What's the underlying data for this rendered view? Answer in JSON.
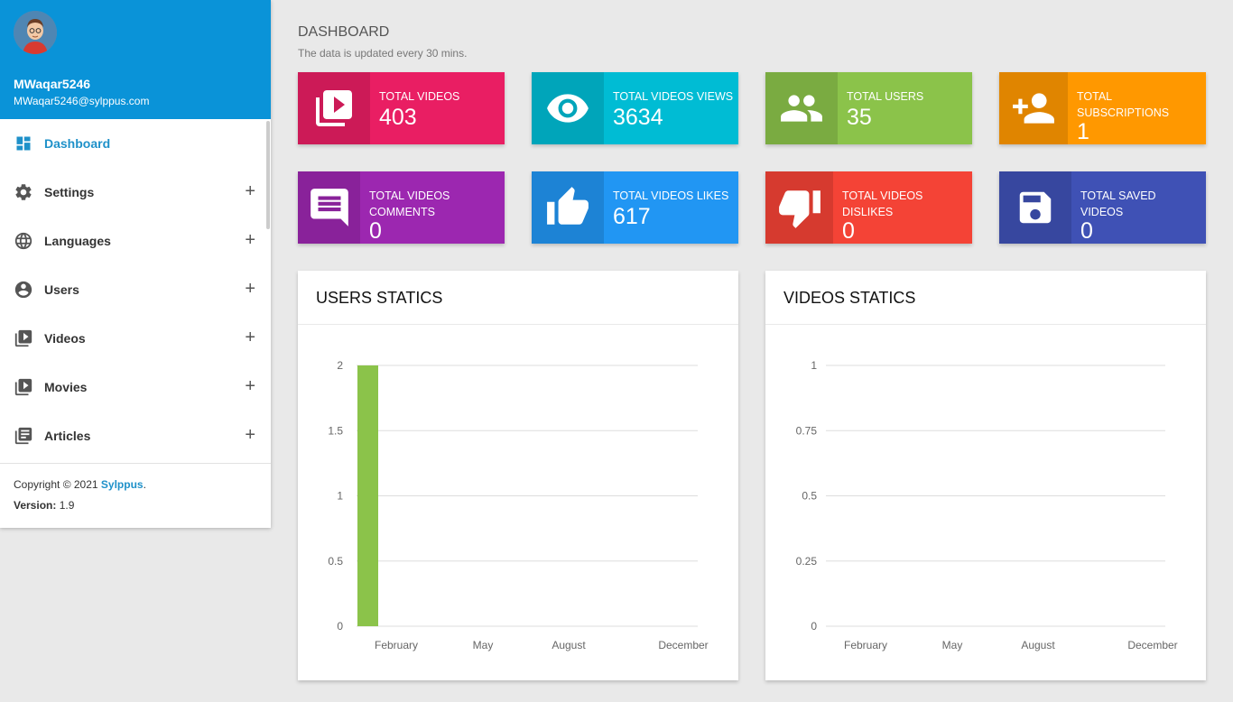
{
  "user": {
    "name": "MWaqar5246",
    "email": "MWaqar5246@sylppus.com"
  },
  "menu": {
    "items": [
      {
        "label": "Dashboard",
        "icon": "dashboard-icon",
        "active": true,
        "expand": ""
      },
      {
        "label": "Settings",
        "icon": "gear-icon",
        "expand": "+"
      },
      {
        "label": "Languages",
        "icon": "globe-icon",
        "expand": "+"
      },
      {
        "label": "Users",
        "icon": "account-circle-icon",
        "expand": "+"
      },
      {
        "label": "Videos",
        "icon": "video-library-icon",
        "expand": "+"
      },
      {
        "label": "Movies",
        "icon": "video-library-icon",
        "expand": "+"
      },
      {
        "label": "Articles",
        "icon": "articles-icon",
        "expand": "+"
      }
    ]
  },
  "legal": {
    "copyright_prefix": "Copyright © 2021 ",
    "copyright_link": "Sylppus",
    "copyright_suffix": ".",
    "version_label": "Version:",
    "version_value": "1.9"
  },
  "page": {
    "title": "DASHBOARD",
    "subtitle": "The data is updated every 30 mins."
  },
  "stats": [
    {
      "label": "TOTAL VIDEOS",
      "value": "403",
      "icon": "video-library-icon",
      "color": "#e91e63"
    },
    {
      "label": "TOTAL VIDEOS VIEWS",
      "value": "3634",
      "icon": "eye-icon",
      "color": "#00bcd4"
    },
    {
      "label": "TOTAL USERS",
      "value": "35",
      "icon": "people-icon",
      "color": "#8bc34a"
    },
    {
      "label": "TOTAL SUBSCRIPTIONS",
      "value": "1",
      "icon": "person-add-icon",
      "color": "#ff9800"
    },
    {
      "label": "TOTAL VIDEOS COMMENTS",
      "value": "0",
      "icon": "comment-icon",
      "color": "#9c27b0"
    },
    {
      "label": "TOTAL VIDEOS LIKES",
      "value": "617",
      "icon": "thumb-up-icon",
      "color": "#2196f3"
    },
    {
      "label": "TOTAL VIDEOS DISLIKES",
      "value": "0",
      "icon": "thumb-down-icon",
      "color": "#f44336"
    },
    {
      "label": "TOTAL SAVED VIDEOS",
      "value": "0",
      "icon": "save-icon",
      "color": "#3f51b5"
    }
  ],
  "chart_data": [
    {
      "type": "bar",
      "title": "USERS STATICS",
      "categories": [
        "February",
        "May",
        "August",
        "December"
      ],
      "values": [
        2,
        0,
        0,
        0
      ],
      "ylim": [
        0,
        2
      ],
      "yticks": [
        "0",
        "0.5",
        "1",
        "1.5",
        "2"
      ],
      "color": "#8bc34a",
      "grid": true
    },
    {
      "type": "bar",
      "title": "VIDEOS STATICS",
      "categories": [
        "February",
        "May",
        "August",
        "December"
      ],
      "values": [
        0,
        0,
        0,
        0
      ],
      "ylim": [
        0,
        1
      ],
      "yticks": [
        "0",
        "0.25",
        "0.5",
        "0.75",
        "1"
      ],
      "color": "#8bc34a",
      "grid": true
    }
  ]
}
